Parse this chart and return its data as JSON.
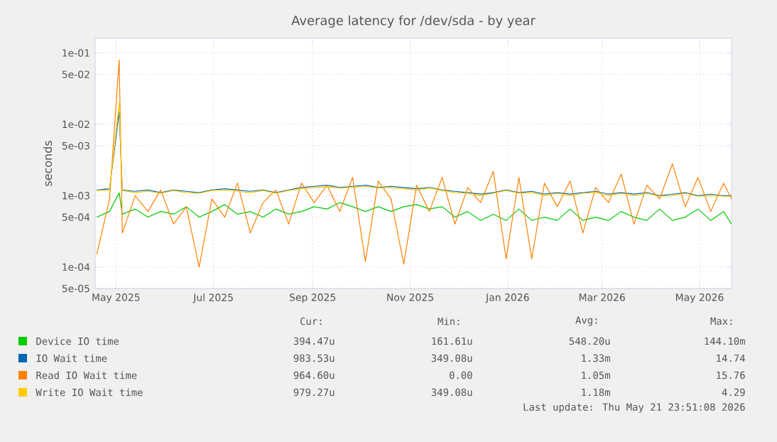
{
  "chart_data": {
    "type": "line",
    "title": "Average latency for /dev/sda - by year",
    "ylabel": "seconds",
    "x": [
      "2025-04-19",
      "2025-04-27",
      "2025-05-03",
      "2025-05-05",
      "2025-05-13",
      "2025-05-21",
      "2025-05-29",
      "2025-06-06",
      "2025-06-14",
      "2025-06-22",
      "2025-06-30",
      "2025-07-08",
      "2025-07-16",
      "2025-07-24",
      "2025-08-01",
      "2025-08-09",
      "2025-08-17",
      "2025-08-25",
      "2025-09-02",
      "2025-09-10",
      "2025-09-18",
      "2025-09-26",
      "2025-10-04",
      "2025-10-12",
      "2025-10-20",
      "2025-10-28",
      "2025-11-05",
      "2025-11-13",
      "2025-11-21",
      "2025-11-29",
      "2025-12-07",
      "2025-12-15",
      "2025-12-23",
      "2025-12-31",
      "2026-01-08",
      "2026-01-16",
      "2026-01-24",
      "2026-02-01",
      "2026-02-09",
      "2026-02-17",
      "2026-02-25",
      "2026-03-05",
      "2026-03-13",
      "2026-03-21",
      "2026-03-29",
      "2026-04-06",
      "2026-04-14",
      "2026-04-22",
      "2026-04-30",
      "2026-05-08",
      "2026-05-16",
      "2026-05-21"
    ],
    "series": [
      {
        "name": "Device IO time",
        "color": "#00cc00",
        "values": [
          0.0005,
          0.0006,
          0.0011,
          0.00055,
          0.00065,
          0.0005,
          0.0006,
          0.00055,
          0.0007,
          0.0005,
          0.0006,
          0.00075,
          0.00055,
          0.0006,
          0.0005,
          0.00065,
          0.00055,
          0.0006,
          0.0007,
          0.00065,
          0.0008,
          0.0007,
          0.0006,
          0.0007,
          0.0006,
          0.0007,
          0.00075,
          0.00065,
          0.0007,
          0.0005,
          0.0006,
          0.00045,
          0.00055,
          0.00045,
          0.00065,
          0.00045,
          0.0005,
          0.00045,
          0.00065,
          0.00045,
          0.0005,
          0.00045,
          0.0006,
          0.0005,
          0.00045,
          0.00065,
          0.00045,
          0.0005,
          0.00065,
          0.00045,
          0.0006,
          0.0004
        ]
      },
      {
        "name": "IO Wait time",
        "color": "#0066b3",
        "values": [
          0.0012,
          0.00125,
          0.015,
          0.0012,
          0.00115,
          0.0012,
          0.0011,
          0.0012,
          0.00115,
          0.0011,
          0.0012,
          0.00125,
          0.0012,
          0.00115,
          0.0012,
          0.0011,
          0.0012,
          0.0013,
          0.00135,
          0.0014,
          0.0013,
          0.00135,
          0.0014,
          0.0013,
          0.00135,
          0.0013,
          0.00125,
          0.0013,
          0.0012,
          0.00115,
          0.0011,
          0.00105,
          0.0011,
          0.0012,
          0.0011,
          0.00115,
          0.00105,
          0.0011,
          0.00105,
          0.0011,
          0.00115,
          0.00105,
          0.0011,
          0.00105,
          0.0011,
          0.001,
          0.00105,
          0.0011,
          0.001,
          0.00105,
          0.001,
          0.001
        ]
      },
      {
        "name": "Read IO Wait time",
        "color": "#ff8000",
        "values": [
          0.00015,
          0.0009,
          0.08,
          0.0003,
          0.001,
          0.0006,
          0.0012,
          0.0004,
          0.0007,
          0.0001,
          0.0009,
          0.0005,
          0.0015,
          0.0003,
          0.0008,
          0.0012,
          0.0004,
          0.0015,
          0.0008,
          0.0014,
          0.0006,
          0.0018,
          0.00012,
          0.0016,
          0.0009,
          0.00011,
          0.0014,
          0.0006,
          0.0018,
          0.0004,
          0.0013,
          0.0008,
          0.0022,
          0.00013,
          0.0018,
          0.00013,
          0.0015,
          0.0007,
          0.0016,
          0.0003,
          0.0013,
          0.0008,
          0.002,
          0.0004,
          0.0014,
          0.0009,
          0.0028,
          0.0007,
          0.0018,
          0.0006,
          0.0015,
          0.0009
        ]
      },
      {
        "name": "Write IO Wait time",
        "color": "#ffcc00",
        "values": [
          0.00118,
          0.0012,
          0.02,
          0.00118,
          0.0011,
          0.00115,
          0.00108,
          0.00118,
          0.0011,
          0.00108,
          0.00118,
          0.0012,
          0.00115,
          0.0011,
          0.00118,
          0.00108,
          0.00118,
          0.00125,
          0.0013,
          0.00133,
          0.00128,
          0.0013,
          0.00135,
          0.00128,
          0.0013,
          0.00125,
          0.0012,
          0.00128,
          0.00118,
          0.0011,
          0.00108,
          0.001,
          0.00108,
          0.00118,
          0.00108,
          0.0011,
          0.001,
          0.00108,
          0.001,
          0.00108,
          0.0011,
          0.001,
          0.00108,
          0.001,
          0.00108,
          0.00098,
          0.001,
          0.00108,
          0.00098,
          0.001,
          0.00098,
          0.00098
        ]
      }
    ],
    "log": "y",
    "xlim": [
      "2025-04-18",
      "2026-05-21"
    ],
    "ylim": [
      5e-05,
      0.16
    ],
    "xticks": [
      {
        "value": "2025-05-01",
        "label": "May 2025"
      },
      {
        "value": "2025-07-01",
        "label": "Jul 2025"
      },
      {
        "value": "2025-09-01",
        "label": "Sep 2025"
      },
      {
        "value": "2025-11-01",
        "label": "Nov 2025"
      },
      {
        "value": "2026-01-01",
        "label": "Jan 2026"
      },
      {
        "value": "2026-03-01",
        "label": "Mar 2026"
      },
      {
        "value": "2026-05-01",
        "label": "May 2026"
      }
    ],
    "yticks": [
      {
        "value": 5e-05,
        "label": "5e-05"
      },
      {
        "value": 0.0001,
        "label": "1e-04"
      },
      {
        "value": 0.0005,
        "label": "5e-04"
      },
      {
        "value": 0.001,
        "label": "1e-03"
      },
      {
        "value": 0.005,
        "label": "5e-03"
      },
      {
        "value": 0.01,
        "label": "1e-02"
      },
      {
        "value": 0.05,
        "label": "5e-02"
      },
      {
        "value": 0.1,
        "label": "1e-01"
      }
    ],
    "grid": true,
    "legend": "bottom",
    "marker": "none",
    "line_style": "solid",
    "annotations": [
      "Cur:",
      "Min:",
      "Avg:",
      "Max:",
      "394.47u",
      "161.61u",
      "548.20u",
      "144.10m",
      "983.53u",
      "349.08u",
      "1.33m",
      "14.74",
      "964.60u",
      "0.00",
      "1.05m",
      "15.76",
      "979.27u",
      "349.08u",
      "1.18m",
      "4.29",
      "Last update: Thu May 21 23:51:08 2026"
    ]
  }
}
